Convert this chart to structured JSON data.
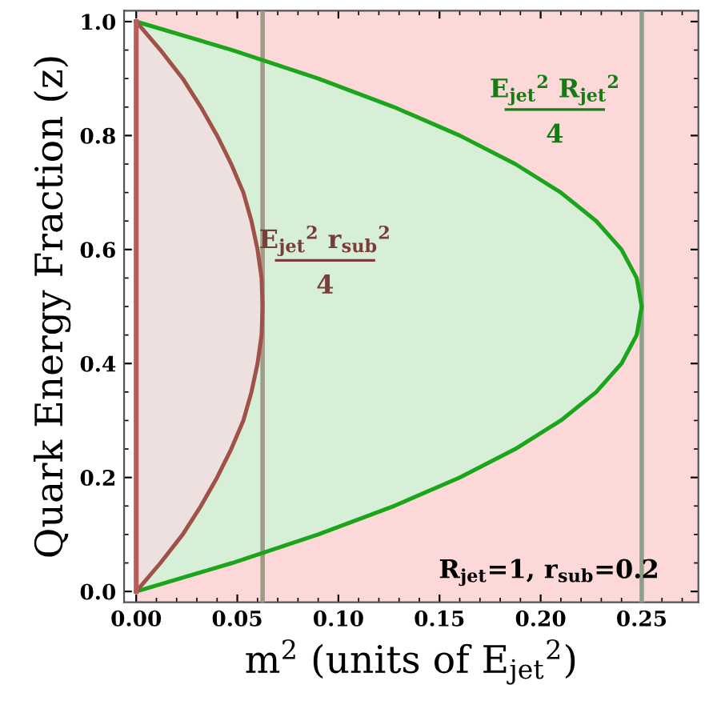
{
  "chart_data": {
    "type": "area",
    "xlabel": "m$^{2}$ (units of E$_{jet}$$^{2}$)",
    "ylabel": "Quark Energy Fraction (z)",
    "series": [
      {
        "color": "#1aa51a",
        "x": [
          0,
          0.0475,
          0.09,
          0.1275,
          0.16,
          0.1875,
          0.21,
          0.2275,
          0.24,
          0.2475,
          0.25,
          0.2475,
          0.24,
          0.2275,
          0.21,
          0.1875,
          0.16,
          0.1275,
          0.09,
          0.0475,
          0
        ],
        "values": [
          0,
          0.05,
          0.1,
          0.15,
          0.2,
          0.25,
          0.3,
          0.35,
          0.4,
          0.45,
          0.5,
          0.55,
          0.6,
          0.65,
          0.7,
          0.75,
          0.8,
          0.85,
          0.9,
          0.95,
          1
        ]
      },
      {
        "color": "#a0524a",
        "x": [
          0,
          0.012,
          0.023,
          0.032,
          0.04,
          0.047,
          0.053,
          0.057,
          0.06,
          0.062,
          0.0625,
          0.062,
          0.06,
          0.057,
          0.053,
          0.047,
          0.04,
          0.032,
          0.023,
          0.012,
          0
        ],
        "values": [
          0,
          0.05,
          0.1,
          0.15,
          0.2,
          0.25,
          0.3,
          0.35,
          0.4,
          0.45,
          0.5,
          0.55,
          0.6,
          0.65,
          0.7,
          0.75,
          0.8,
          0.85,
          0.9,
          0.95,
          1
        ]
      },
      {
        "type": "line",
        "color": "#b85c5c",
        "x": [
          0,
          0
        ],
        "values": [
          0,
          1
        ]
      }
    ],
    "xlim": [
      -0.006,
      0.278
    ],
    "ylim": [
      -0.019,
      1.019
    ],
    "xticks": [
      {
        "value": 0,
        "label": "0.00"
      },
      0.05,
      {
        "value": 0.1,
        "label": "0.10"
      },
      0.15,
      {
        "value": 0.2,
        "label": "0.20"
      },
      0.25
    ],
    "yticks": [
      {
        "value": 0,
        "label": "0.0"
      },
      0.2,
      0.4,
      0.6,
      0.8,
      {
        "value": 1,
        "label": "1.0"
      }
    ],
    "bands": [
      {
        "axis": "x",
        "from": 0,
        "to": 0.278,
        "color": "#fdd8d8"
      }
    ],
    "ref_lines": [
      {
        "axis": "x",
        "value": 0.0625,
        "color": "#a09a88",
        "label": "E$_{jet}$$^{2}$ r$_{sub}$$^{2}$\n4"
      },
      {
        "axis": "x",
        "value": 0.25,
        "color": "#8fa08a",
        "label": "E$_{jet}$$^{2}$ R$_{jet}$$^{2}$\n4"
      }
    ],
    "annotations": [
      "R$_{jet}$=1, r$_{sub}$=0.2"
    ],
    "grid": false
  }
}
